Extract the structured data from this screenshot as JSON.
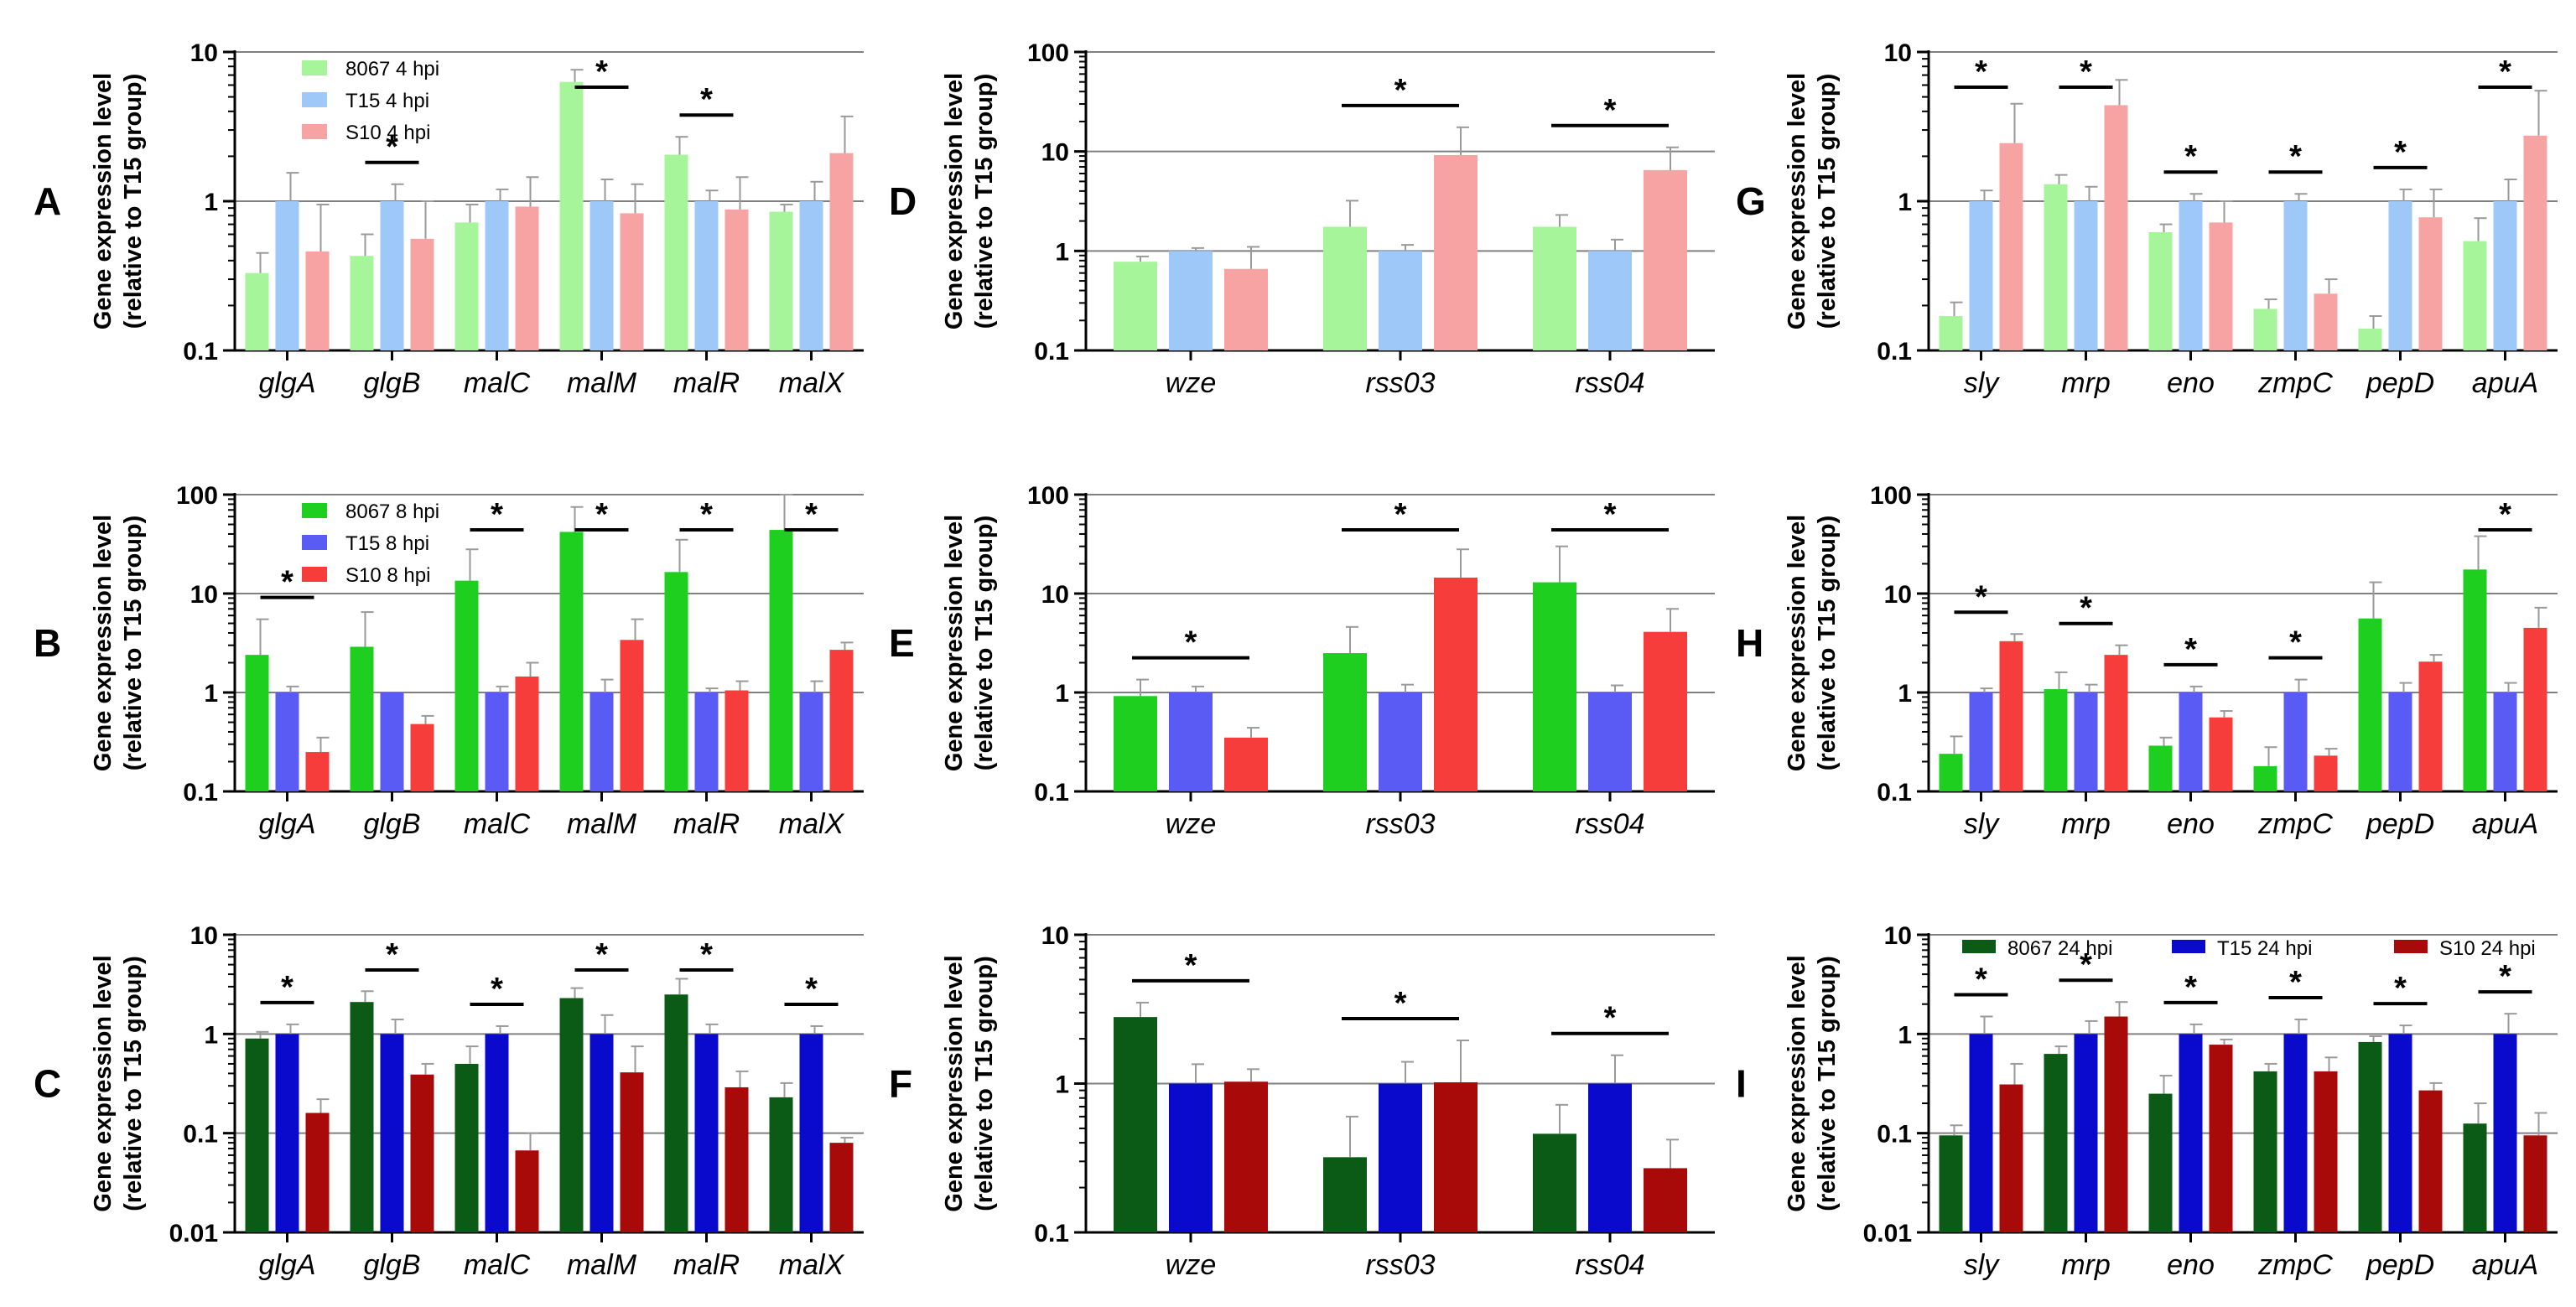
{
  "figure": {
    "y_axis_label_line1": "Gene expression level",
    "y_axis_label_line2": "(relative to T15 group)"
  },
  "chart_data": [
    {
      "id": "A",
      "label": "A",
      "type": "bar",
      "yscale": "log",
      "ylim": [
        0.1,
        10
      ],
      "yticks": [
        "0.1",
        "1",
        "10"
      ],
      "ylabel": "Gene expression level (relative to T15 group)",
      "categories": [
        "glgA",
        "glgB",
        "malC",
        "malM",
        "malR",
        "malX"
      ],
      "legend": "top-left",
      "series": [
        {
          "name": "8067 4 hpi",
          "color": "#a6f59a",
          "values": [
            0.33,
            0.43,
            0.72,
            6.3,
            2.05,
            0.85
          ],
          "err": [
            0.45,
            0.6,
            0.95,
            7.6,
            2.7,
            0.95
          ]
        },
        {
          "name": "T15 4 hpi",
          "color": "#9ec8f7",
          "values": [
            1.0,
            1.0,
            1.0,
            1.0,
            1.0,
            1.0
          ],
          "err": [
            1.55,
            1.3,
            1.2,
            1.4,
            1.18,
            1.35
          ]
        },
        {
          "name": "S10 4 hpi",
          "color": "#f7a3a3",
          "values": [
            0.46,
            0.56,
            0.92,
            0.83,
            0.88,
            2.1
          ],
          "err": [
            0.95,
            1.0,
            1.45,
            1.3,
            1.45,
            3.7
          ]
        }
      ],
      "significance": [
        {
          "category": "glgB",
          "label": "*"
        },
        {
          "category": "malM",
          "label": "*"
        },
        {
          "category": "malR",
          "label": "*"
        }
      ]
    },
    {
      "id": "B",
      "label": "B",
      "type": "bar",
      "yscale": "log",
      "ylim": [
        0.1,
        100
      ],
      "yticks": [
        "0.1",
        "1",
        "10",
        "100"
      ],
      "ylabel": "Gene expression level (relative to T15 group)",
      "categories": [
        "glgA",
        "glgB",
        "malC",
        "malM",
        "malR",
        "malX"
      ],
      "legend": "top-left",
      "series": [
        {
          "name": "8067 8 hpi",
          "color": "#1fcf1f",
          "values": [
            2.4,
            2.9,
            13.5,
            42,
            16.5,
            44
          ],
          "err": [
            5.5,
            6.5,
            28,
            75,
            35,
            100
          ]
        },
        {
          "name": "T15 8 hpi",
          "color": "#5a5af5",
          "values": [
            1.0,
            1.0,
            1.0,
            1.0,
            1.0,
            1.0
          ],
          "err": [
            1.15,
            1.0,
            1.15,
            1.35,
            1.1,
            1.3
          ]
        },
        {
          "name": "S10 8 hpi",
          "color": "#f73c3c",
          "values": [
            0.25,
            0.48,
            1.45,
            3.4,
            1.05,
            2.7
          ],
          "err": [
            0.35,
            0.58,
            2.0,
            5.5,
            1.3,
            3.2
          ]
        }
      ],
      "significance": [
        {
          "category": "glgA",
          "label": "*"
        },
        {
          "category": "malC",
          "label": "*"
        },
        {
          "category": "malM",
          "label": "*"
        },
        {
          "category": "malR",
          "label": "*"
        },
        {
          "category": "malX",
          "label": "*"
        }
      ]
    },
    {
      "id": "C",
      "label": "C",
      "type": "bar",
      "yscale": "log",
      "ylim": [
        0.01,
        10
      ],
      "yticks": [
        "0.01",
        "0.1",
        "1",
        "10"
      ],
      "ylabel": "Gene expression level (relative to T15 group)",
      "categories": [
        "glgA",
        "glgB",
        "malC",
        "malM",
        "malR",
        "malX"
      ],
      "legend": "none",
      "series": [
        {
          "name": "8067 24 hpi",
          "color": "#0b5a16",
          "values": [
            0.9,
            2.1,
            0.5,
            2.3,
            2.5,
            0.23
          ],
          "err": [
            1.05,
            2.7,
            0.75,
            2.9,
            3.6,
            0.32
          ]
        },
        {
          "name": "T15 24 hpi",
          "color": "#0a0acc",
          "values": [
            1.0,
            1.0,
            1.0,
            1.0,
            1.0,
            1.0
          ],
          "err": [
            1.25,
            1.4,
            1.2,
            1.55,
            1.25,
            1.2
          ]
        },
        {
          "name": "S10 24 hpi",
          "color": "#a80a0a",
          "values": [
            0.16,
            0.39,
            0.067,
            0.41,
            0.29,
            0.08
          ],
          "err": [
            0.22,
            0.5,
            0.1,
            0.75,
            0.42,
            0.09
          ]
        }
      ],
      "significance": [
        {
          "category": "glgA",
          "label": "*"
        },
        {
          "category": "glgB",
          "label": "*"
        },
        {
          "category": "malC",
          "label": "*"
        },
        {
          "category": "malM",
          "label": "*"
        },
        {
          "category": "malR",
          "label": "*"
        },
        {
          "category": "malX",
          "label": "*"
        }
      ]
    },
    {
      "id": "D",
      "label": "D",
      "type": "bar",
      "yscale": "log",
      "ylim": [
        0.1,
        100
      ],
      "yticks": [
        "0.1",
        "1",
        "10",
        "100"
      ],
      "ylabel": "Gene expression level (relative to T15 group)",
      "categories": [
        "wze",
        "rss03",
        "rss04"
      ],
      "legend": "none",
      "series": [
        {
          "name": "8067 4 hpi",
          "color": "#a6f59a",
          "values": [
            0.78,
            1.75,
            1.75
          ],
          "err": [
            0.88,
            3.2,
            2.3
          ]
        },
        {
          "name": "T15 4 hpi",
          "color": "#9ec8f7",
          "values": [
            1.0,
            1.0,
            1.0
          ],
          "err": [
            1.07,
            1.15,
            1.3
          ]
        },
        {
          "name": "S10 4 hpi",
          "color": "#f7a3a3",
          "values": [
            0.66,
            9.2,
            6.5
          ],
          "err": [
            1.1,
            17.5,
            11
          ]
        }
      ],
      "significance": [
        {
          "category": "rss03",
          "label": "*"
        },
        {
          "category": "rss04",
          "label": "*"
        }
      ]
    },
    {
      "id": "E",
      "label": "E",
      "type": "bar",
      "yscale": "log",
      "ylim": [
        0.1,
        100
      ],
      "yticks": [
        "0.1",
        "1",
        "10",
        "100"
      ],
      "ylabel": "Gene expression level (relative to T15 group)",
      "categories": [
        "wze",
        "rss03",
        "rss04"
      ],
      "legend": "none",
      "series": [
        {
          "name": "8067 8 hpi",
          "color": "#1fcf1f",
          "values": [
            0.92,
            2.5,
            13
          ],
          "err": [
            1.35,
            4.6,
            30
          ]
        },
        {
          "name": "T15 8 hpi",
          "color": "#5a5af5",
          "values": [
            1.0,
            1.0,
            1.0
          ],
          "err": [
            1.15,
            1.2,
            1.18
          ]
        },
        {
          "name": "S10 8 hpi",
          "color": "#f73c3c",
          "values": [
            0.35,
            14.5,
            4.1
          ],
          "err": [
            0.44,
            28,
            7
          ]
        }
      ],
      "significance": [
        {
          "category": "wze",
          "label": "*"
        },
        {
          "category": "rss03",
          "label": "*"
        },
        {
          "category": "rss04",
          "label": "*"
        }
      ]
    },
    {
      "id": "F",
      "label": "F",
      "type": "bar",
      "yscale": "log",
      "ylim": [
        0.1,
        10
      ],
      "yticks": [
        "0.1",
        "1",
        "10"
      ],
      "ylabel": "Gene expression level (relative to T15 group)",
      "categories": [
        "wze",
        "rss03",
        "rss04"
      ],
      "legend": "none",
      "series": [
        {
          "name": "8067 24 hpi",
          "color": "#0b5a16",
          "values": [
            2.8,
            0.32,
            0.46
          ],
          "err": [
            3.5,
            0.6,
            0.72
          ]
        },
        {
          "name": "T15 24 hpi",
          "color": "#0a0acc",
          "values": [
            1.0,
            1.0,
            1.0
          ],
          "err": [
            1.35,
            1.4,
            1.55
          ]
        },
        {
          "name": "S10 24 hpi",
          "color": "#a80a0a",
          "values": [
            1.03,
            1.02,
            0.27
          ],
          "err": [
            1.25,
            1.95,
            0.42
          ]
        }
      ],
      "significance": [
        {
          "category": "wze",
          "label": "*"
        },
        {
          "category": "rss03",
          "label": "*"
        },
        {
          "category": "rss04",
          "label": "*"
        }
      ]
    },
    {
      "id": "G",
      "label": "G",
      "type": "bar",
      "yscale": "log",
      "ylim": [
        0.1,
        10
      ],
      "yticks": [
        "0.1",
        "1",
        "10"
      ],
      "ylabel": "Gene expression level (relative to T15 group)",
      "categories": [
        "sly",
        "mrp",
        "eno",
        "zmpC",
        "pepD",
        "apuA"
      ],
      "legend": "none",
      "series": [
        {
          "name": "8067 4 hpi",
          "color": "#a6f59a",
          "values": [
            0.17,
            1.3,
            0.62,
            0.19,
            0.14,
            0.54
          ],
          "err": [
            0.21,
            1.5,
            0.7,
            0.22,
            0.17,
            0.77
          ]
        },
        {
          "name": "T15 4 hpi",
          "color": "#9ec8f7",
          "values": [
            1.0,
            1.0,
            1.0,
            1.0,
            1.0,
            1.0
          ],
          "err": [
            1.18,
            1.25,
            1.12,
            1.12,
            1.2,
            1.4
          ]
        },
        {
          "name": "S10 4 hpi",
          "color": "#f7a3a3",
          "values": [
            2.45,
            4.4,
            0.72,
            0.24,
            0.78,
            2.75
          ],
          "err": [
            4.5,
            6.5,
            1.0,
            0.3,
            1.2,
            5.5
          ]
        }
      ],
      "significance": [
        {
          "category": "sly",
          "label": "*"
        },
        {
          "category": "mrp",
          "label": "*"
        },
        {
          "category": "eno",
          "label": "*"
        },
        {
          "category": "zmpC",
          "label": "*"
        },
        {
          "category": "pepD",
          "label": "*"
        },
        {
          "category": "apuA",
          "label": "*"
        }
      ]
    },
    {
      "id": "H",
      "label": "H",
      "type": "bar",
      "yscale": "log",
      "ylim": [
        0.1,
        100
      ],
      "yticks": [
        "0.1",
        "1",
        "10",
        "100"
      ],
      "ylabel": "Gene expression level (relative to T15 group)",
      "categories": [
        "sly",
        "mrp",
        "eno",
        "zmpC",
        "pepD",
        "apuA"
      ],
      "legend": "none",
      "series": [
        {
          "name": "8067 8 hpi",
          "color": "#1fcf1f",
          "values": [
            0.24,
            1.08,
            0.29,
            0.18,
            5.6,
            17.5
          ],
          "err": [
            0.36,
            1.6,
            0.35,
            0.28,
            13,
            38
          ]
        },
        {
          "name": "T15 8 hpi",
          "color": "#5a5af5",
          "values": [
            1.0,
            1.0,
            1.0,
            1.0,
            1.0,
            1.0
          ],
          "err": [
            1.1,
            1.2,
            1.15,
            1.35,
            1.25,
            1.25
          ]
        },
        {
          "name": "S10 8 hpi",
          "color": "#f73c3c",
          "values": [
            3.3,
            2.4,
            0.56,
            0.23,
            2.05,
            4.5
          ],
          "err": [
            3.9,
            3.0,
            0.65,
            0.27,
            2.4,
            7.2
          ]
        }
      ],
      "significance": [
        {
          "category": "sly",
          "label": "*"
        },
        {
          "category": "mrp",
          "label": "*"
        },
        {
          "category": "eno",
          "label": "*"
        },
        {
          "category": "zmpC",
          "label": "*"
        },
        {
          "category": "apuA",
          "label": "*"
        }
      ]
    },
    {
      "id": "I",
      "label": "I",
      "type": "bar",
      "yscale": "log",
      "ylim": [
        0.01,
        10
      ],
      "yticks": [
        "0.01",
        "0.1",
        "1",
        "10"
      ],
      "ylabel": "Gene expression level (relative to T15 group)",
      "categories": [
        "sly",
        "mrp",
        "eno",
        "zmpC",
        "pepD",
        "apuA"
      ],
      "legend": "top",
      "series": [
        {
          "name": "8067 24 hpi",
          "color": "#0b5a16",
          "values": [
            0.095,
            0.63,
            0.25,
            0.42,
            0.83,
            0.125
          ],
          "err": [
            0.12,
            0.75,
            0.38,
            0.5,
            0.95,
            0.2
          ]
        },
        {
          "name": "T15 24 hpi",
          "color": "#0a0acc",
          "values": [
            1.0,
            1.0,
            1.0,
            1.0,
            1.0,
            1.0
          ],
          "err": [
            1.5,
            1.35,
            1.25,
            1.4,
            1.22,
            1.6
          ]
        },
        {
          "name": "S10 24 hpi",
          "color": "#a80a0a",
          "values": [
            0.31,
            1.5,
            0.78,
            0.42,
            0.27,
            0.095
          ],
          "err": [
            0.5,
            2.1,
            0.88,
            0.58,
            0.32,
            0.16
          ]
        }
      ],
      "significance": [
        {
          "category": "sly",
          "label": "*"
        },
        {
          "category": "mrp",
          "label": "*"
        },
        {
          "category": "eno",
          "label": "*"
        },
        {
          "category": "zmpC",
          "label": "*"
        },
        {
          "category": "pepD",
          "label": "*"
        },
        {
          "category": "apuA",
          "label": "*"
        }
      ]
    }
  ]
}
